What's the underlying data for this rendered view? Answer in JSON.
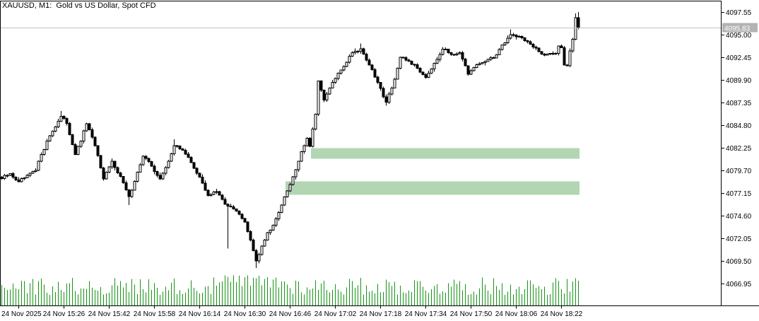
{
  "header": {
    "title": "XAUUSD, M1:  Gold vs US Dollar, Spot CFD"
  },
  "chart_data": {
    "type": "candlestick",
    "symbol": "XAUUSD",
    "timeframe": "M1",
    "description": "Gold vs US Dollar, Spot CFD",
    "current_bid": 4095.83,
    "current_bid_label": "4095.83",
    "price_axis": {
      "side": "right",
      "ticks": [
        "4097.55",
        "4095.00",
        "4092.45",
        "4089.90",
        "4087.35",
        "4084.80",
        "4082.25",
        "4079.70",
        "4077.15",
        "4074.60",
        "4072.05",
        "4069.50",
        "4066.95"
      ],
      "tick_values": [
        4097.55,
        4095.0,
        4092.45,
        4089.9,
        4087.35,
        4084.8,
        4082.25,
        4079.7,
        4077.15,
        4074.6,
        4072.05,
        4069.5,
        4066.95
      ],
      "step": 2.55,
      "max": 4097.55,
      "min": 4066.95
    },
    "time_axis": {
      "labels": [
        "24 Nov 2025",
        "24 Nov 15:26",
        "24 Nov 15:42",
        "24 Nov 15:58",
        "24 Nov 16:14",
        "24 Nov 16:30",
        "24 Nov 16:46",
        "24 Nov 17:02",
        "24 Nov 17:18",
        "24 Nov 17:34",
        "24 Nov 17:50",
        "24 Nov 18:06",
        "24 Nov 18:22"
      ],
      "label_interval_minutes": 16,
      "first_label_time": "24 Nov 2025 15:10",
      "candle_interval_minutes": 1
    },
    "candle_count": 205,
    "series_start_time": "24 Nov 2025 15:04",
    "series_end_time": "24 Nov 2025 18:28",
    "close_anchors": [
      [
        0,
        4078.8
      ],
      [
        3,
        4079.3
      ],
      [
        6,
        4078.4
      ],
      [
        9,
        4079.1
      ],
      [
        12,
        4079.7
      ],
      [
        14,
        4081.5
      ],
      [
        17,
        4083.6
      ],
      [
        21,
        4085.8
      ],
      [
        23,
        4085.0
      ],
      [
        26,
        4081.5
      ],
      [
        28,
        4083.0
      ],
      [
        30,
        4085.0
      ],
      [
        33,
        4082.5
      ],
      [
        36,
        4078.7
      ],
      [
        39,
        4080.7
      ],
      [
        42,
        4079.0
      ],
      [
        45,
        4076.7
      ],
      [
        48,
        4079.5
      ],
      [
        50,
        4081.3
      ],
      [
        53,
        4080.2
      ],
      [
        56,
        4078.7
      ],
      [
        58,
        4080.0
      ],
      [
        61,
        4082.5
      ],
      [
        64,
        4082.0
      ],
      [
        67,
        4080.6
      ],
      [
        70,
        4078.9
      ],
      [
        73,
        4076.9
      ],
      [
        76,
        4077.3
      ],
      [
        79,
        4075.9
      ],
      [
        81,
        4075.6
      ],
      [
        83,
        4075.1
      ],
      [
        86,
        4073.9
      ],
      [
        88,
        4071.9
      ],
      [
        90,
        4069.5
      ],
      [
        92,
        4071.2
      ],
      [
        94,
        4072.7
      ],
      [
        96,
        4073.5
      ],
      [
        98,
        4075.0
      ],
      [
        101,
        4077.4
      ],
      [
        104,
        4079.8
      ],
      [
        106,
        4081.8
      ],
      [
        108,
        4083.3
      ],
      [
        109,
        4082.4
      ],
      [
        111,
        4086.0
      ],
      [
        112,
        4089.8
      ],
      [
        114,
        4087.6
      ],
      [
        117,
        4089.6
      ],
      [
        120,
        4091.0
      ],
      [
        124,
        4093.0
      ],
      [
        127,
        4093.4
      ],
      [
        130,
        4091.6
      ],
      [
        133,
        4089.6
      ],
      [
        136,
        4087.4
      ],
      [
        139,
        4090.0
      ],
      [
        141,
        4092.4
      ],
      [
        144,
        4092.0
      ],
      [
        147,
        4091.2
      ],
      [
        150,
        4090.2
      ],
      [
        153,
        4091.8
      ],
      [
        156,
        4093.4
      ],
      [
        159,
        4092.8
      ],
      [
        162,
        4093.0
      ],
      [
        165,
        4090.5
      ],
      [
        168,
        4091.6
      ],
      [
        171,
        4092.0
      ],
      [
        174,
        4092.4
      ],
      [
        177,
        4093.8
      ],
      [
        180,
        4095.0
      ],
      [
        183,
        4094.8
      ],
      [
        186,
        4094.2
      ],
      [
        188,
        4093.6
      ],
      [
        191,
        4092.8
      ],
      [
        194,
        4092.9
      ],
      [
        196,
        4092.9
      ],
      [
        197,
        4093.7
      ],
      [
        198,
        4093.5
      ],
      [
        199,
        4091.6
      ],
      [
        200,
        4091.5
      ],
      [
        201,
        4093.2
      ],
      [
        202,
        4094.5
      ],
      [
        203,
        4096.9
      ],
      [
        204,
        4095.83
      ]
    ],
    "wick_overrides": {
      "21": {
        "high": 4086.4
      },
      "45": {
        "low": 4075.8
      },
      "61": {
        "high": 4083.2
      },
      "80": {
        "low": 4070.9
      },
      "90": {
        "low": 4068.7
      },
      "127": {
        "high": 4094.0
      },
      "136": {
        "low": 4087.0
      },
      "180": {
        "high": 4095.6
      },
      "203": {
        "high": 4097.4
      },
      "204": {
        "high": 4097.55,
        "low": 4095.6
      }
    },
    "zones": [
      {
        "name": "upper-zone",
        "price_top": 4082.2,
        "price_bottom": 4081.0,
        "from_candle": 110,
        "to_candle": 204
      },
      {
        "name": "lower-zone",
        "price_top": 4078.45,
        "price_bottom": 4076.95,
        "from_candle": 101,
        "to_candle": 204
      }
    ],
    "volume": {
      "shown": true,
      "min_rel": 0.38,
      "max_rel": 1.0,
      "spike_range": [
        76,
        100
      ]
    },
    "render_seed": 987654321,
    "colors": {
      "background": "#ffffff",
      "bull_body": "#ffffff",
      "bear_body": "#000000",
      "outline": "#000000",
      "volume": "#179317",
      "zone_fill": "#b2d6b2",
      "bid_line": "#c0c0c0",
      "bid_tag_bg": "#b3b3b3",
      "bid_tag_text": "#ffffff",
      "axis_line": "#000000",
      "axis_text": "#000000",
      "title_text": "#000000"
    },
    "legend_position": "none",
    "grid": "off"
  }
}
